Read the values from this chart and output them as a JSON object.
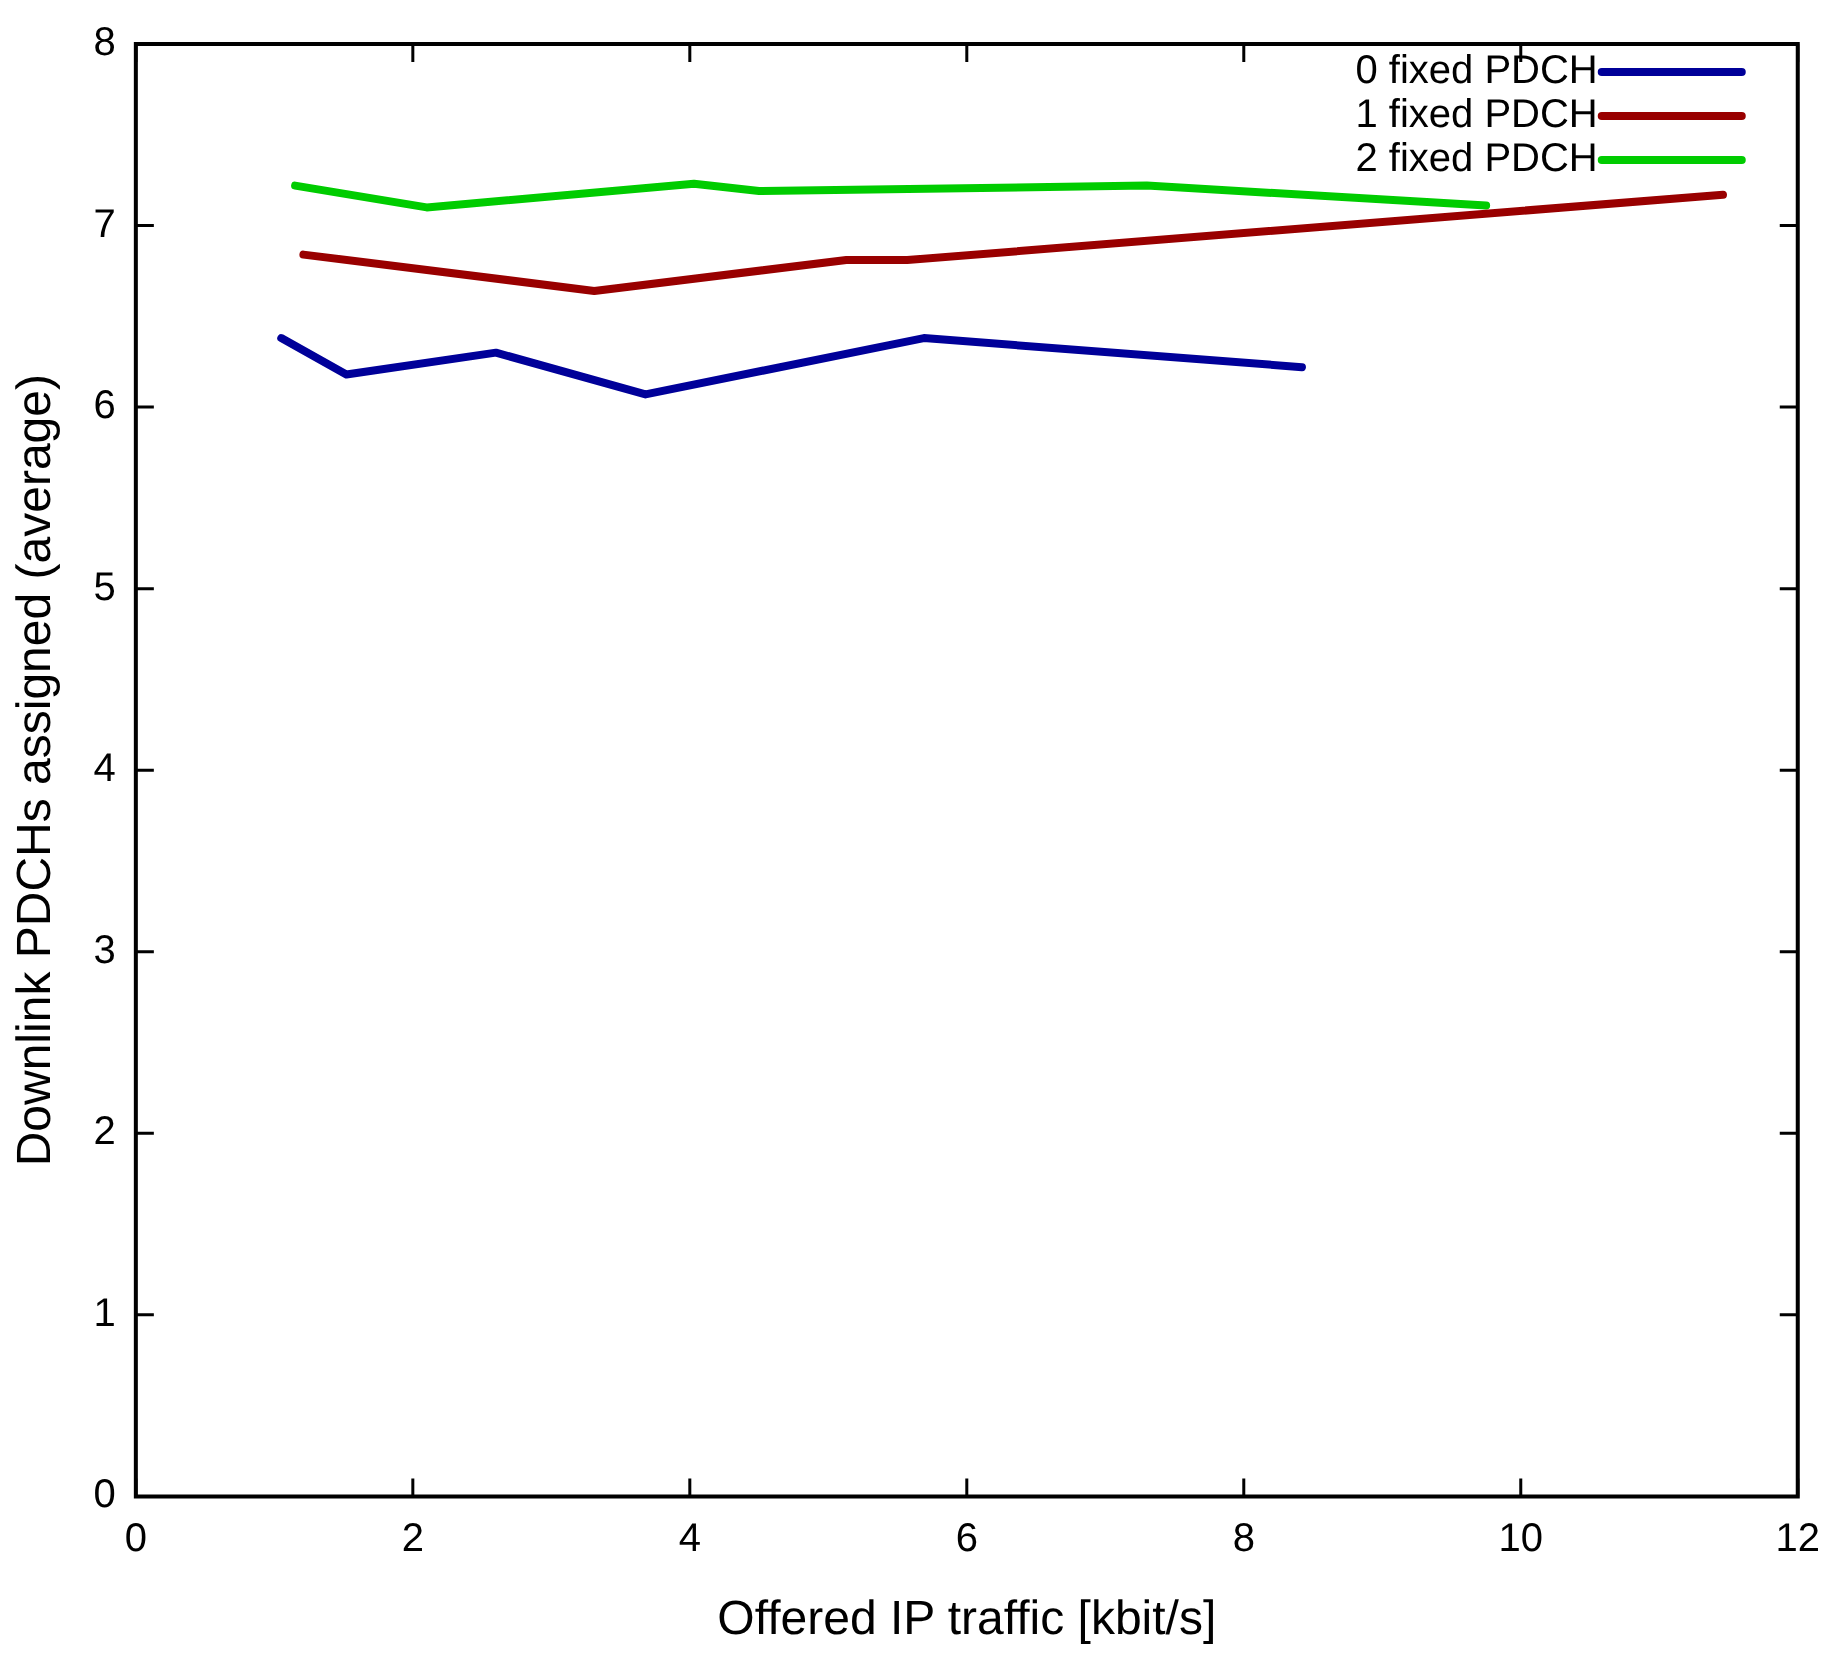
{
  "chart_data": {
    "type": "line",
    "xlabel": "Offered IP traffic [kbit/s]",
    "ylabel": "Downlink PDCHs assigned (average)",
    "xlim": [
      0,
      12
    ],
    "xticks": [
      0,
      2,
      4,
      6,
      8,
      10,
      12
    ],
    "ylim": [
      0,
      8
    ],
    "yticks": [
      0,
      1,
      2,
      3,
      4,
      5,
      6,
      7,
      8
    ],
    "grid": false,
    "legend": "top right",
    "marker": "none",
    "line_style": "solid",
    "series": [
      {
        "name": "0 fixed PDCH",
        "color": "#000099",
        "x": [
          1.05,
          1.52,
          2.6,
          3.68,
          5.69,
          8.42
        ],
        "values": [
          6.38,
          6.18,
          6.3,
          6.07,
          6.38,
          6.22
        ]
      },
      {
        "name": "1 fixed PDCH",
        "color": "#990000",
        "x": [
          1.21,
          3.31,
          5.13,
          5.57,
          11.46
        ],
        "values": [
          6.84,
          6.64,
          6.81,
          6.81,
          7.17
        ]
      },
      {
        "name": "2 fixed PDCH",
        "color": "#00cc00",
        "x": [
          1.15,
          2.1,
          4.03,
          4.5,
          7.3,
          9.75
        ],
        "values": [
          7.22,
          7.1,
          7.23,
          7.19,
          7.22,
          7.11
        ]
      }
    ]
  }
}
